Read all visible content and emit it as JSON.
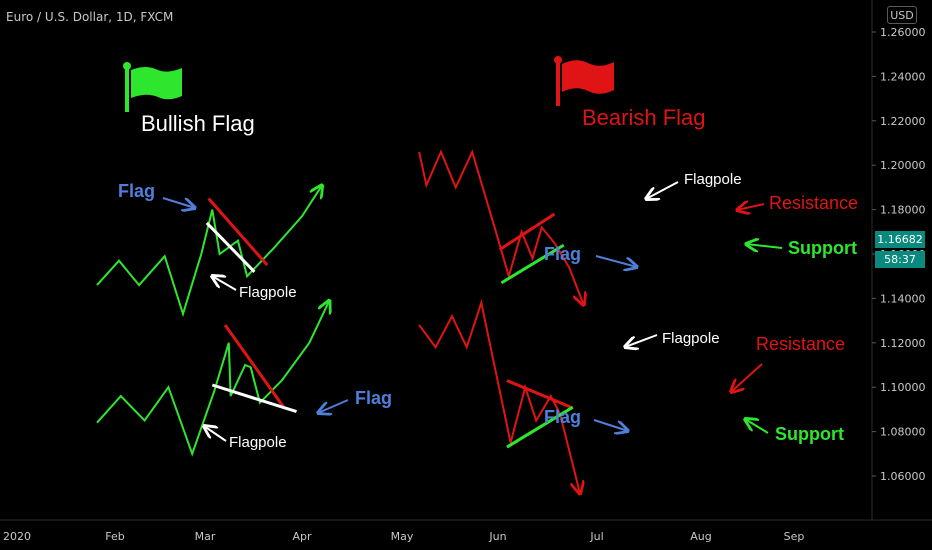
{
  "header": {
    "symbol_title": "Euro / U.S. Dollar, 1D, FXCM",
    "currency_button": "USD"
  },
  "price_tags": {
    "last_price": "1.16682",
    "countdown": "58:37"
  },
  "colors": {
    "background": "#000000",
    "green": "#2ee62e",
    "red": "#e01414",
    "blue_label": "#4f7fd9",
    "white": "#ffffff",
    "axis_text": "#c8c8c8",
    "tag": "#0a8a7e"
  },
  "legend_titles": {
    "bullish": "Bullish Flag",
    "bearish": "Bearish Flag"
  },
  "annotations": {
    "flag": "Flag",
    "flagpole": "Flagpole",
    "resistance": "Resistance",
    "support": "Support"
  },
  "chart_data": {
    "type": "line",
    "title": "",
    "y_ticks": [
      "1.26000",
      "1.24000",
      "1.22000",
      "1.20000",
      "1.18000",
      "1.16000",
      "1.14000",
      "1.12000",
      "1.10000",
      "1.08000",
      "1.06000"
    ],
    "x_ticks": [
      "2020",
      "Feb",
      "Mar",
      "Apr",
      "May",
      "Jun",
      "Jul",
      "Aug",
      "Sep"
    ],
    "ylim": [
      1.05,
      1.265
    ],
    "grid": false,
    "series": [
      {
        "group": "bullish-top",
        "color": "green",
        "points": [
          [
            1,
            1.146
          ],
          [
            2.2,
            1.157
          ],
          [
            3.3,
            1.146
          ],
          [
            4.7,
            1.159
          ],
          [
            5.7,
            1.133
          ],
          [
            6.7,
            1.16
          ],
          [
            7.3,
            1.18
          ],
          [
            7.7,
            1.16
          ],
          [
            8.7,
            1.166
          ],
          [
            9.2,
            1.15
          ],
          [
            10.7,
            1.163
          ],
          [
            12.2,
            1.177
          ],
          [
            13.3,
            1.191
          ]
        ]
      },
      {
        "group": "bullish-top",
        "color": "red",
        "points": [
          [
            7.1,
            1.185
          ],
          [
            10.3,
            1.155
          ]
        ]
      },
      {
        "group": "bullish-top",
        "color": "white",
        "points": [
          [
            7.0,
            1.174
          ],
          [
            9.6,
            1.152
          ]
        ]
      },
      {
        "group": "bullish-bottom",
        "color": "green",
        "points": [
          [
            1,
            1.084
          ],
          [
            2.3,
            1.096
          ],
          [
            3.6,
            1.085
          ],
          [
            4.9,
            1.1
          ],
          [
            6.2,
            1.07
          ],
          [
            7.4,
            1.098
          ],
          [
            8.2,
            1.12
          ],
          [
            8.3,
            1.096
          ],
          [
            9.1,
            1.11
          ],
          [
            9.4,
            1.109
          ],
          [
            9.9,
            1.093
          ],
          [
            11.1,
            1.103
          ],
          [
            12.6,
            1.12
          ],
          [
            13.7,
            1.139
          ]
        ]
      },
      {
        "group": "bullish-bottom",
        "color": "red",
        "points": [
          [
            8.0,
            1.128
          ],
          [
            11.2,
            1.091
          ]
        ]
      },
      {
        "group": "bullish-bottom",
        "color": "white",
        "points": [
          [
            7.3,
            1.101
          ],
          [
            11.9,
            1.089
          ]
        ]
      },
      {
        "group": "bearish-top",
        "color": "red",
        "points": [
          [
            18.6,
            1.206
          ],
          [
            19.0,
            1.191
          ],
          [
            19.8,
            1.206
          ],
          [
            20.6,
            1.19
          ],
          [
            21.5,
            1.206
          ],
          [
            22.8,
            1.17
          ],
          [
            23.5,
            1.15
          ],
          [
            24.2,
            1.17
          ],
          [
            24.8,
            1.158
          ],
          [
            25.3,
            1.172
          ],
          [
            26.0,
            1.165
          ],
          [
            26.8,
            1.154
          ],
          [
            27.6,
            1.137
          ]
        ]
      },
      {
        "group": "bearish-top",
        "color": "red",
        "points": [
          [
            23.0,
            1.162
          ],
          [
            26.0,
            1.178
          ]
        ]
      },
      {
        "group": "bearish-top",
        "color": "green",
        "points": [
          [
            23.1,
            1.147
          ],
          [
            26.5,
            1.164
          ]
        ]
      },
      {
        "group": "bearish-bottom",
        "color": "red",
        "points": [
          [
            18.6,
            1.128
          ],
          [
            19.5,
            1.118
          ],
          [
            20.4,
            1.132
          ],
          [
            21.2,
            1.118
          ],
          [
            22.0,
            1.138
          ],
          [
            23.6,
            1.075
          ],
          [
            24.4,
            1.1
          ],
          [
            25.0,
            1.085
          ],
          [
            25.8,
            1.096
          ],
          [
            26.3,
            1.088
          ],
          [
            27.4,
            1.052
          ]
        ]
      },
      {
        "group": "bearish-bottom",
        "color": "red",
        "points": [
          [
            23.4,
            1.103
          ],
          [
            26.9,
            1.091
          ]
        ]
      },
      {
        "group": "bearish-bottom",
        "color": "green",
        "points": [
          [
            23.4,
            1.073
          ],
          [
            27.0,
            1.091
          ]
        ]
      }
    ]
  }
}
